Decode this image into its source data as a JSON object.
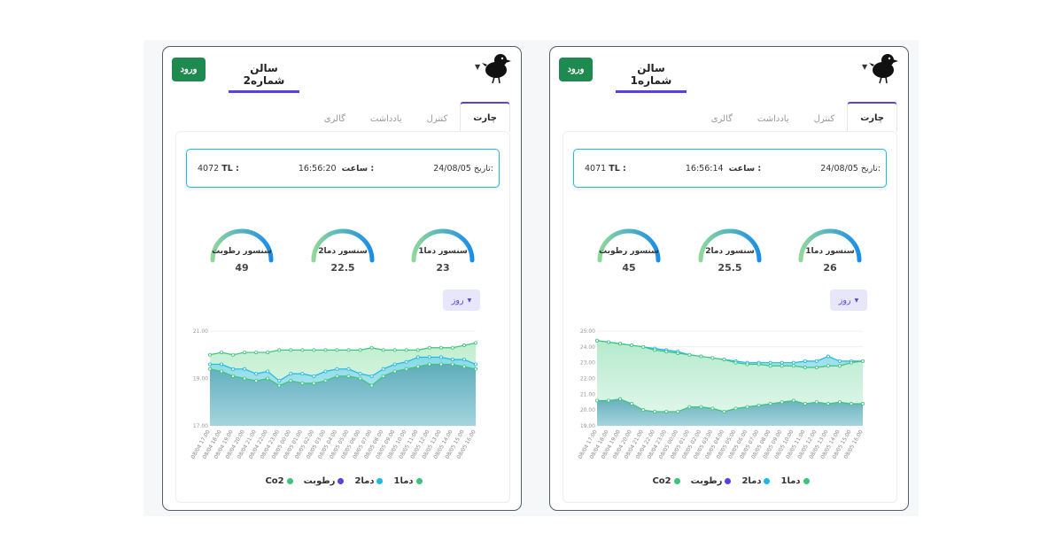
{
  "cards": [
    {
      "id": "hall2",
      "login_label": "ورود",
      "hall_title": "سالن شماره2",
      "tabs": [
        "چارت",
        "کنترل",
        "یادداشت",
        "گالری"
      ],
      "info": {
        "date_label": "تاریخ:",
        "date": "24/08/05",
        "time_label": "ساعت :",
        "time": "16:56:20",
        "tl_label": "TL :",
        "tl": "4072"
      },
      "gauges": [
        {
          "label": "سنسور دما1",
          "value": "23",
          "level": 0.5
        },
        {
          "label": "سنسور دما2",
          "value": "22.5",
          "level": 0.5
        },
        {
          "label": "سنسور رطوبت",
          "value": "49",
          "level": 0.5
        }
      ],
      "period": "روز",
      "chart_data": {
        "type": "area",
        "x": [
          "08/04 17:00",
          "08/04 18:00",
          "08/04 19:00",
          "08/04 20:00",
          "08/04 21:00",
          "08/04 22:00",
          "08/04 23:00",
          "08/05 00:00",
          "08/05 01:00",
          "08/05 02:00",
          "08/05 03:00",
          "08/05 04:00",
          "08/05 05:00",
          "08/05 06:00",
          "08/05 07:00",
          "08/05 08:00",
          "08/05 09:00",
          "08/05 10:00",
          "08/05 11:00",
          "08/05 12:00",
          "08/05 13:00",
          "08/05 14:00",
          "08/05 15:00",
          "08/05 16:00"
        ],
        "ylim": [
          17,
          21
        ],
        "yticks": [
          "17.00",
          "19.00",
          "21.00"
        ],
        "series": [
          {
            "name": "Co2",
            "color": "#3cc47c",
            "values": [
              20,
              20.1,
              20,
              20.1,
              20.1,
              20.1,
              20.2,
              20.2,
              20.2,
              20.2,
              20.2,
              20.2,
              20.2,
              20.2,
              20.3,
              20.2,
              20.2,
              20.2,
              20.2,
              20.3,
              20.3,
              20.3,
              20.4,
              20.5
            ]
          },
          {
            "name": "دما2",
            "color": "#1fb8e0",
            "values": [
              19.6,
              19.6,
              19.4,
              19.4,
              19.2,
              19.3,
              18.9,
              19.2,
              19.2,
              19.1,
              19.3,
              19.4,
              19.4,
              19.2,
              19.1,
              19.4,
              19.6,
              19.7,
              19.9,
              19.9,
              19.9,
              19.8,
              19.8,
              19.6
            ]
          },
          {
            "name": "دما1",
            "color": "#3cc47c",
            "values": [
              19.4,
              19.3,
              19.1,
              19.0,
              18.9,
              19.0,
              18.7,
              18.9,
              18.8,
              18.8,
              18.9,
              19.1,
              19.1,
              19.0,
              18.7,
              19.1,
              19.3,
              19.4,
              19.5,
              19.6,
              19.6,
              19.6,
              19.5,
              19.4
            ]
          }
        ]
      },
      "legend": [
        {
          "label": "دما1",
          "color": "#3cc47c"
        },
        {
          "label": "دما2",
          "color": "#1fb8e0"
        },
        {
          "label": "رطوبت",
          "color": "#5b3fe0"
        },
        {
          "label": "Co2",
          "color": "#3cc47c"
        }
      ]
    },
    {
      "id": "hall1",
      "login_label": "ورود",
      "hall_title": "سالن شماره1",
      "tabs": [
        "چارت",
        "کنترل",
        "یادداشت",
        "گالری"
      ],
      "info": {
        "date_label": "تاریخ:",
        "date": "24/08/05",
        "time_label": "ساعت :",
        "time": "16:56:14",
        "tl_label": "TL :",
        "tl": "4071"
      },
      "gauges": [
        {
          "label": "سنسور دما1",
          "value": "26",
          "level": 0.5
        },
        {
          "label": "سنسور دما2",
          "value": "25.5",
          "level": 0.5
        },
        {
          "label": "سنسور رطوبت",
          "value": "45",
          "level": 0.5
        }
      ],
      "period": "روز",
      "chart_data": {
        "type": "area",
        "x": [
          "08/04 17:00",
          "08/04 18:00",
          "08/04 19:00",
          "08/04 20:00",
          "08/04 21:00",
          "08/04 22:00",
          "08/04 23:00",
          "08/05 00:00",
          "08/05 01:00",
          "08/05 02:00",
          "08/05 03:00",
          "08/05 04:00",
          "08/05 05:00",
          "08/05 06:00",
          "08/05 07:00",
          "08/05 08:00",
          "08/05 09:00",
          "08/05 10:00",
          "08/05 11:00",
          "08/05 12:00",
          "08/05 13:00",
          "08/05 14:00",
          "08/05 15:00",
          "08/05 16:00"
        ],
        "ylim": [
          19,
          25
        ],
        "yticks": [
          "19.00",
          "20.00",
          "21.00",
          "22.00",
          "23.00",
          "24.00",
          "25.00"
        ],
        "series": [
          {
            "name": "دما2",
            "color": "#1fb8e0",
            "values": [
              24.4,
              24.3,
              24.2,
              24.1,
              24.0,
              23.9,
              23.8,
              23.7,
              23.5,
              23.4,
              23.3,
              23.2,
              23.1,
              23.0,
              23.0,
              23.0,
              23.0,
              23.0,
              23.1,
              23.1,
              23.4,
              23.1,
              23.1,
              23.1
            ]
          },
          {
            "name": "دما1",
            "color": "#3cc47c",
            "values": [
              24.4,
              24.3,
              24.2,
              24.1,
              24.0,
              23.8,
              23.7,
              23.6,
              23.5,
              23.4,
              23.3,
              23.2,
              23.0,
              22.9,
              22.9,
              22.8,
              22.8,
              22.8,
              22.7,
              22.7,
              22.8,
              22.8,
              23.0,
              23.1
            ]
          },
          {
            "name": "Co2",
            "color": "#3cc47c",
            "values": [
              20.6,
              20.6,
              20.7,
              20.4,
              20.0,
              19.9,
              19.9,
              19.9,
              20.2,
              20.2,
              20.1,
              19.9,
              20.1,
              20.2,
              20.3,
              20.4,
              20.5,
              20.6,
              20.4,
              20.5,
              20.4,
              20.5,
              20.4,
              20.4
            ]
          }
        ]
      },
      "legend": [
        {
          "label": "دما1",
          "color": "#3cc47c"
        },
        {
          "label": "دما2",
          "color": "#1fb8e0"
        },
        {
          "label": "رطوبت",
          "color": "#5b3fe0"
        },
        {
          "label": "Co2",
          "color": "#3cc47c"
        }
      ]
    }
  ]
}
